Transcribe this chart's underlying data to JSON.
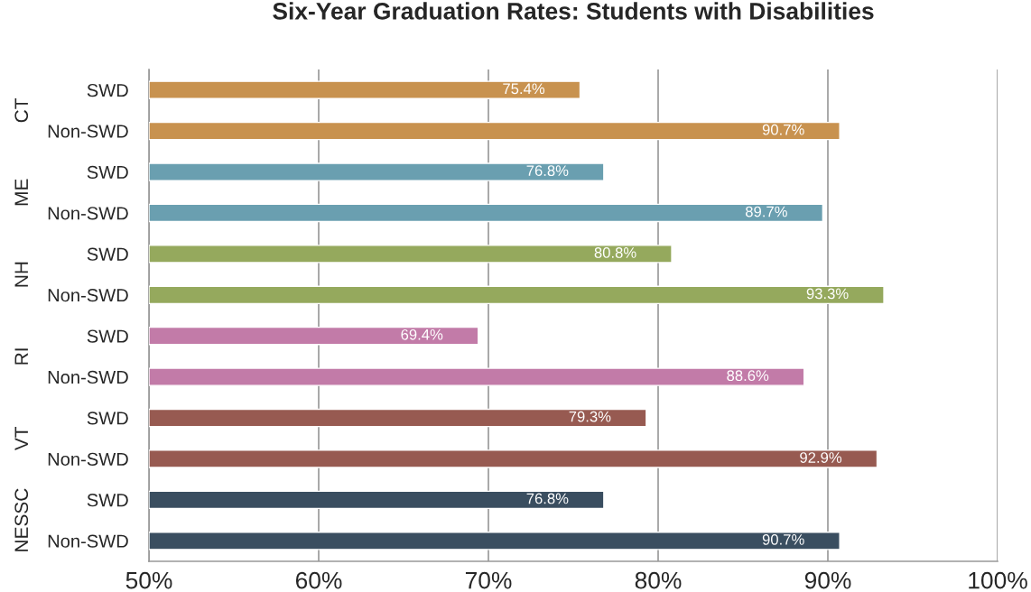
{
  "chart_data": {
    "type": "bar",
    "orientation": "horizontal",
    "title": "Six-Year Graduation Rates: Students with Disabilities",
    "categories": [
      "SWD",
      "Non-SWD",
      "SWD",
      "Non-SWD",
      "SWD",
      "Non-SWD",
      "SWD",
      "Non-SWD",
      "SWD",
      "Non-SWD",
      "SWD",
      "Non-SWD"
    ],
    "annotations": [
      "CT",
      "ME",
      "NH",
      "RI",
      "VT",
      "NESSC"
    ],
    "values": [
      75.4,
      90.7,
      76.8,
      89.7,
      80.8,
      93.3,
      69.4,
      88.6,
      79.3,
      92.9,
      76.8,
      90.7
    ],
    "value_labels": [
      "75.4%",
      "90.7%",
      "76.8%",
      "89.7%",
      "80.8%",
      "93.3%",
      "69.4%",
      "88.6%",
      "79.3%",
      "92.9%",
      "76.8%",
      "90.7%"
    ],
    "colors": [
      "#c8924f",
      "#c8924f",
      "#6a9fb0",
      "#6a9fb0",
      "#95a95d",
      "#95a95d",
      "#c27ba8",
      "#c27ba8",
      "#975a51",
      "#975a51",
      "#3a4e60",
      "#3a4e60"
    ],
    "xlim": [
      50,
      100
    ],
    "xticks": [
      {
        "value": 50,
        "label": "50%"
      },
      {
        "value": 60,
        "label": "60%"
      },
      {
        "value": 70,
        "label": "70%"
      },
      {
        "value": 80,
        "label": "80%"
      },
      {
        "value": 90,
        "label": "90%"
      },
      {
        "value": 100,
        "label": "100%"
      }
    ],
    "grid": "x",
    "legend": false
  }
}
